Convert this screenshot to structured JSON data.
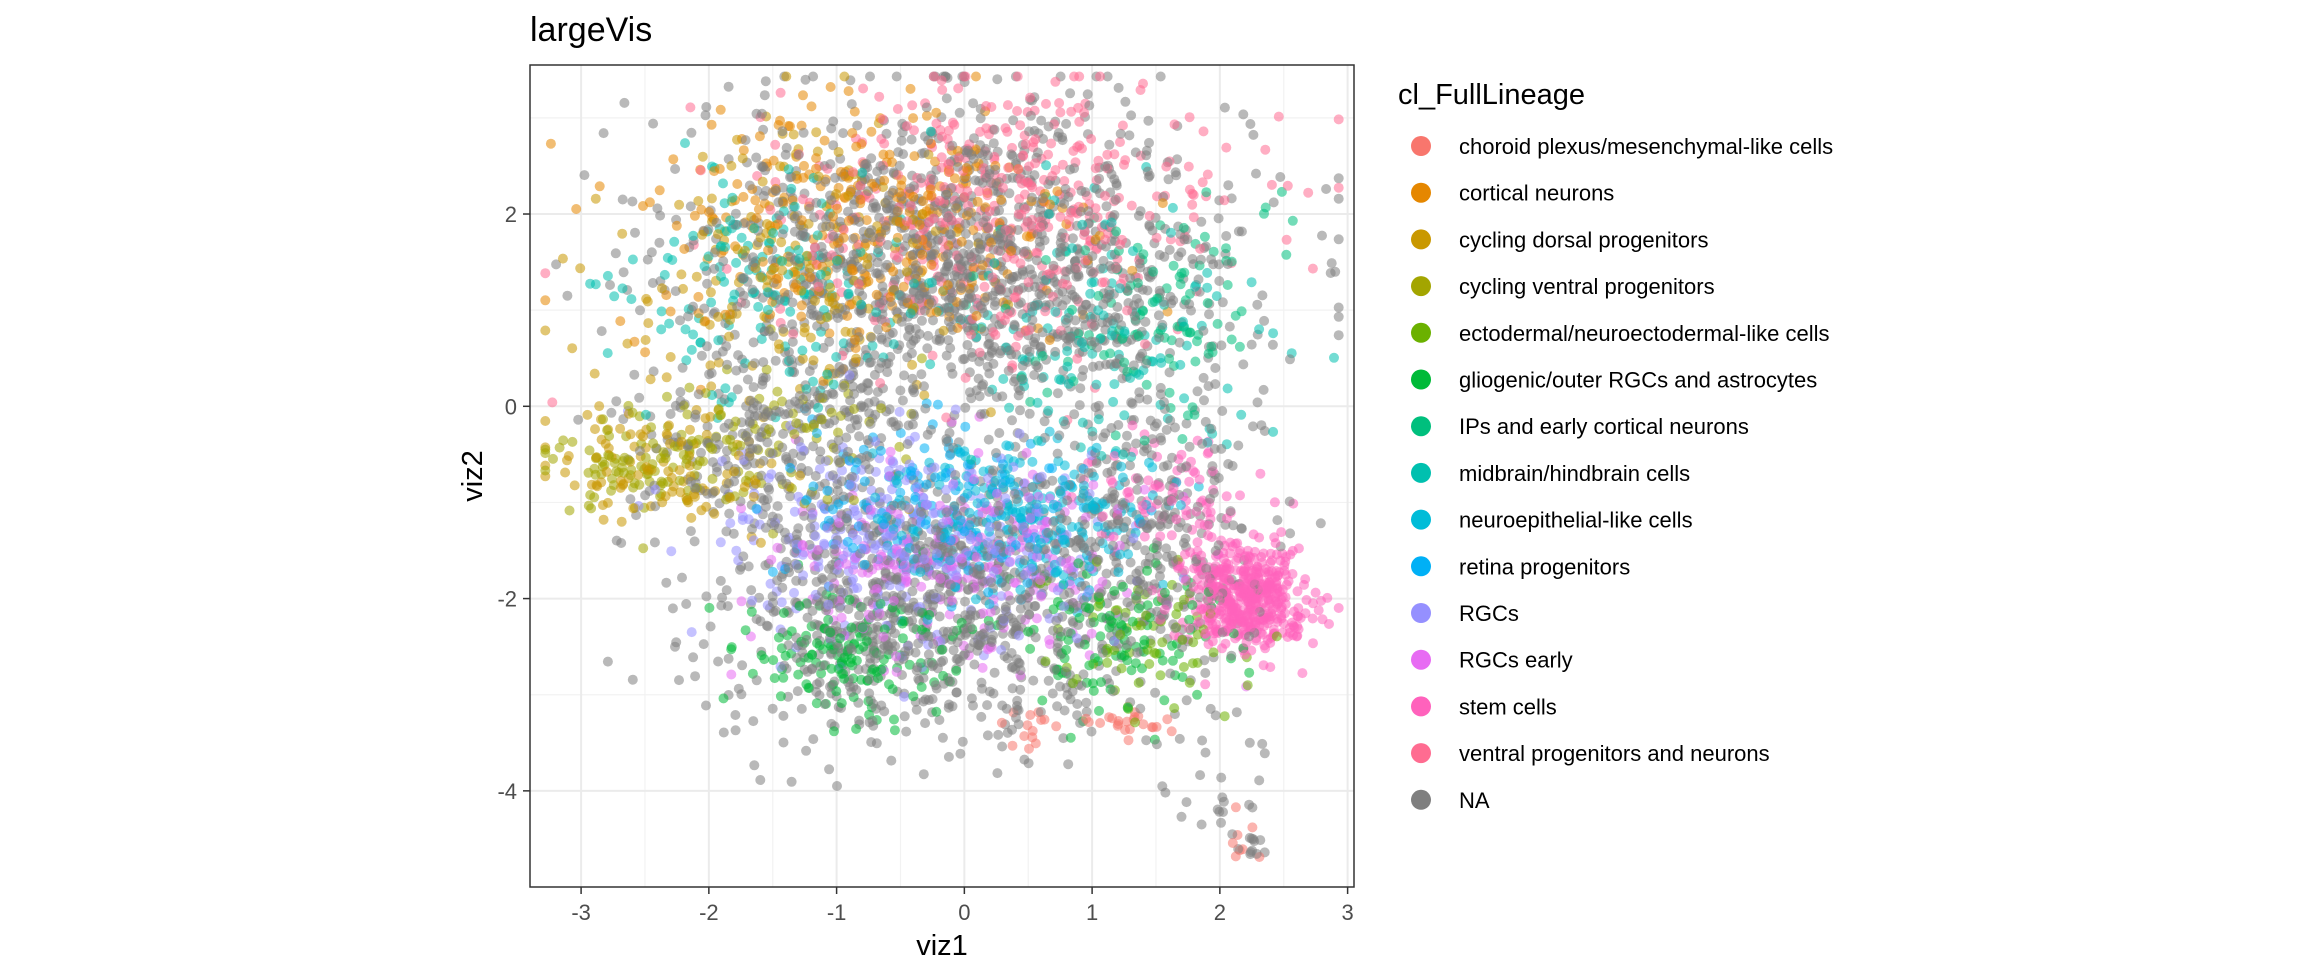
{
  "chart_data": {
    "type": "scatter",
    "title": "largeVis",
    "xlabel": "viz1",
    "ylabel": "viz2",
    "xlim": [
      -3.4,
      3.05
    ],
    "ylim": [
      -5.0,
      3.55
    ],
    "x_ticks": [
      -3,
      -2,
      -1,
      0,
      1,
      2,
      3
    ],
    "y_ticks": [
      -4,
      -2,
      0,
      2
    ],
    "x_tick_labels": [
      "-3",
      "-2",
      "-1",
      "0",
      "1",
      "2",
      "3"
    ],
    "y_tick_labels": [
      "-4",
      "-2",
      "0",
      "2"
    ],
    "grid": true,
    "legend_position": "right",
    "point_alpha": 0.55,
    "legend": {
      "title": "cl_FullLineage",
      "entries": [
        {
          "label": "choroid plexus/mesenchymal-like cells",
          "color": "#F8766D"
        },
        {
          "label": "cortical neurons",
          "color": "#E58700"
        },
        {
          "label": "cycling dorsal progenitors",
          "color": "#C99800"
        },
        {
          "label": "cycling ventral progenitors",
          "color": "#A3A500"
        },
        {
          "label": "ectodermal/neuroectodermal-like cells",
          "color": "#6BB100"
        },
        {
          "label": "gliogenic/outer RGCs and astrocytes",
          "color": "#00BA38"
        },
        {
          "label": "IPs and early cortical neurons",
          "color": "#00BF7D"
        },
        {
          "label": "midbrain/hindbrain cells",
          "color": "#00C0AF"
        },
        {
          "label": "neuroepithelial-like cells",
          "color": "#00BCD8"
        },
        {
          "label": "retina progenitors",
          "color": "#00B0F6"
        },
        {
          "label": "RGCs",
          "color": "#9590FF"
        },
        {
          "label": "RGCs early",
          "color": "#E76BF3"
        },
        {
          "label": "stem cells",
          "color": "#FF62BC"
        },
        {
          "label": "ventral progenitors and neurons",
          "color": "#FF6C91"
        },
        {
          "label": "NA",
          "color": "#7F7F7F"
        }
      ]
    },
    "clusters": [
      {
        "series": "NA",
        "cx": 0.0,
        "cy": 1.5,
        "sx": 1.1,
        "sy": 0.85,
        "n": 1300
      },
      {
        "series": "ventral progenitors and neurons",
        "cx": 0.3,
        "cy": 2.0,
        "sx": 0.9,
        "sy": 0.7,
        "n": 420
      },
      {
        "series": "cortical neurons",
        "cx": -0.8,
        "cy": 1.8,
        "sx": 0.9,
        "sy": 0.7,
        "n": 320
      },
      {
        "series": "cycling dorsal progenitors",
        "cx": -1.3,
        "cy": 1.5,
        "sx": 0.7,
        "sy": 0.7,
        "n": 180
      },
      {
        "series": "midbrain/hindbrain cells",
        "cx": -1.4,
        "cy": 1.2,
        "sx": 0.6,
        "sy": 0.6,
        "n": 160
      },
      {
        "series": "midbrain/hindbrain cells",
        "cx": 1.0,
        "cy": 0.8,
        "sx": 0.6,
        "sy": 0.7,
        "n": 140
      },
      {
        "series": "IPs and early cortical neurons",
        "cx": 1.5,
        "cy": 1.0,
        "sx": 0.45,
        "sy": 0.6,
        "n": 110
      },
      {
        "series": "cycling ventral progenitors",
        "cx": -2.6,
        "cy": -0.6,
        "sx": 0.35,
        "sy": 0.25,
        "n": 90
      },
      {
        "series": "cycling ventral progenitors",
        "cx": -1.6,
        "cy": -0.3,
        "sx": 0.55,
        "sy": 0.4,
        "n": 90
      },
      {
        "series": "cycling dorsal progenitors",
        "cx": -2.3,
        "cy": -0.6,
        "sx": 0.5,
        "sy": 0.35,
        "n": 110
      },
      {
        "series": "NA",
        "cx": -1.5,
        "cy": -0.3,
        "sx": 0.55,
        "sy": 0.45,
        "n": 220
      },
      {
        "series": "NA",
        "cx": -0.3,
        "cy": -2.0,
        "sx": 0.85,
        "sy": 0.7,
        "n": 900
      },
      {
        "series": "NA",
        "cx": 1.4,
        "cy": -1.3,
        "sx": 0.45,
        "sy": 0.8,
        "n": 320
      },
      {
        "series": "RGCs",
        "cx": -0.4,
        "cy": -1.4,
        "sx": 0.75,
        "sy": 0.55,
        "n": 320
      },
      {
        "series": "RGCs early",
        "cx": 0.0,
        "cy": -1.6,
        "sx": 0.7,
        "sy": 0.5,
        "n": 260
      },
      {
        "series": "neuroepithelial-like cells",
        "cx": 0.4,
        "cy": -1.2,
        "sx": 0.55,
        "sy": 0.4,
        "n": 260
      },
      {
        "series": "retina progenitors",
        "cx": -0.3,
        "cy": -0.9,
        "sx": 0.6,
        "sy": 0.45,
        "n": 120
      },
      {
        "series": "gliogenic/outer RGCs and astrocytes",
        "cx": -0.9,
        "cy": -2.6,
        "sx": 0.45,
        "sy": 0.35,
        "n": 150
      },
      {
        "series": "gliogenic/outer RGCs and astrocytes",
        "cx": 1.2,
        "cy": -2.4,
        "sx": 0.45,
        "sy": 0.4,
        "n": 110
      },
      {
        "series": "ectodermal/neuroectodermal-like cells",
        "cx": 1.3,
        "cy": -2.5,
        "sx": 0.4,
        "sy": 0.4,
        "n": 70
      },
      {
        "series": "stem cells",
        "cx": 2.2,
        "cy": -2.0,
        "sx": 0.25,
        "sy": 0.28,
        "n": 460
      },
      {
        "series": "stem cells",
        "cx": 1.6,
        "cy": -0.9,
        "sx": 0.3,
        "sy": 0.3,
        "n": 80
      },
      {
        "series": "choroid plexus/mesenchymal-like cells",
        "cx": 1.3,
        "cy": -3.3,
        "sx": 0.2,
        "sy": 0.1,
        "n": 22
      },
      {
        "series": "choroid plexus/mesenchymal-like cells",
        "cx": 0.5,
        "cy": -3.35,
        "sx": 0.12,
        "sy": 0.1,
        "n": 14
      },
      {
        "series": "choroid plexus/mesenchymal-like cells",
        "cx": 2.2,
        "cy": -4.5,
        "sx": 0.07,
        "sy": 0.15,
        "n": 8
      },
      {
        "series": "NA",
        "cx": 2.0,
        "cy": -3.9,
        "sx": 0.2,
        "sy": 0.3,
        "n": 22
      },
      {
        "series": "NA",
        "cx": 2.25,
        "cy": -4.55,
        "sx": 0.06,
        "sy": 0.1,
        "n": 12
      }
    ]
  }
}
